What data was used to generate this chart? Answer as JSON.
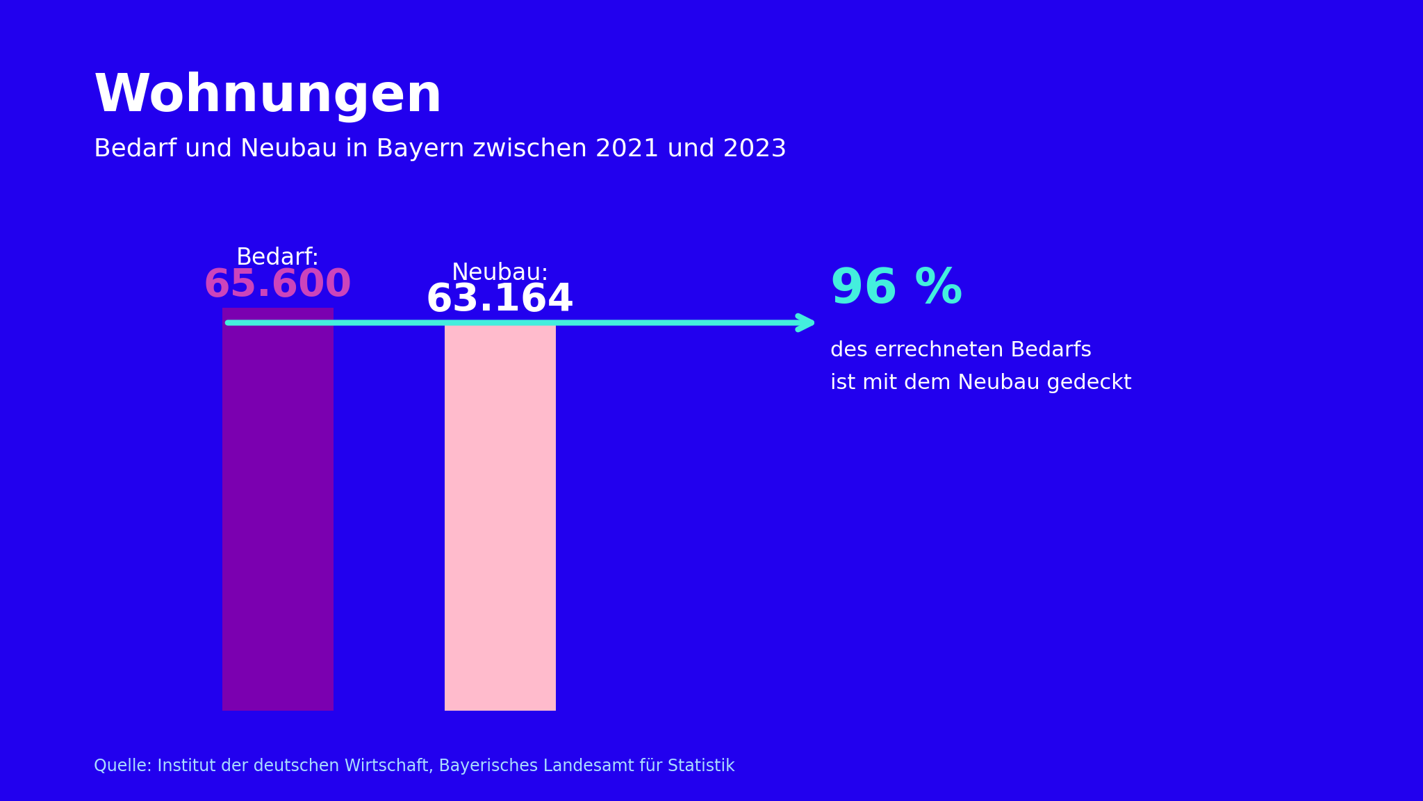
{
  "title": "Wohnungen",
  "subtitle": "Bedarf und Neubau in Bayern zwischen 2021 und 2023",
  "source": "Quelle: Institut der deutschen Wirtschaft, Bayerisches Landesamt für Statistik",
  "background_color": "#2200ee",
  "bar1_label": "Bedarf:",
  "bar1_value_text": "65.600",
  "bar1_value": 65600,
  "bar1_color": "#7b00b0",
  "bar1_value_color": "#cc44bb",
  "bar2_label": "Neubau:",
  "bar2_value_text": "63.164",
  "bar2_value": 63164,
  "bar2_color": "#ffbbcc",
  "bar2_value_color": "#ffffff",
  "arrow_color": "#44eedd",
  "percent_text": "96 %",
  "percent_color": "#44eedd",
  "percent_desc1": "des errechneten Bedarfs",
  "percent_desc2": "ist mit dem Neubau gedeckt",
  "percent_desc_color": "#ffffff",
  "title_color": "#ffffff",
  "subtitle_color": "#ffffff",
  "source_color": "#aaddff",
  "title_fontsize": 54,
  "subtitle_fontsize": 26,
  "bar_label_fontsize": 24,
  "bar_value_fontsize": 40,
  "percent_fontsize": 50,
  "percent_desc_fontsize": 22,
  "source_fontsize": 17
}
